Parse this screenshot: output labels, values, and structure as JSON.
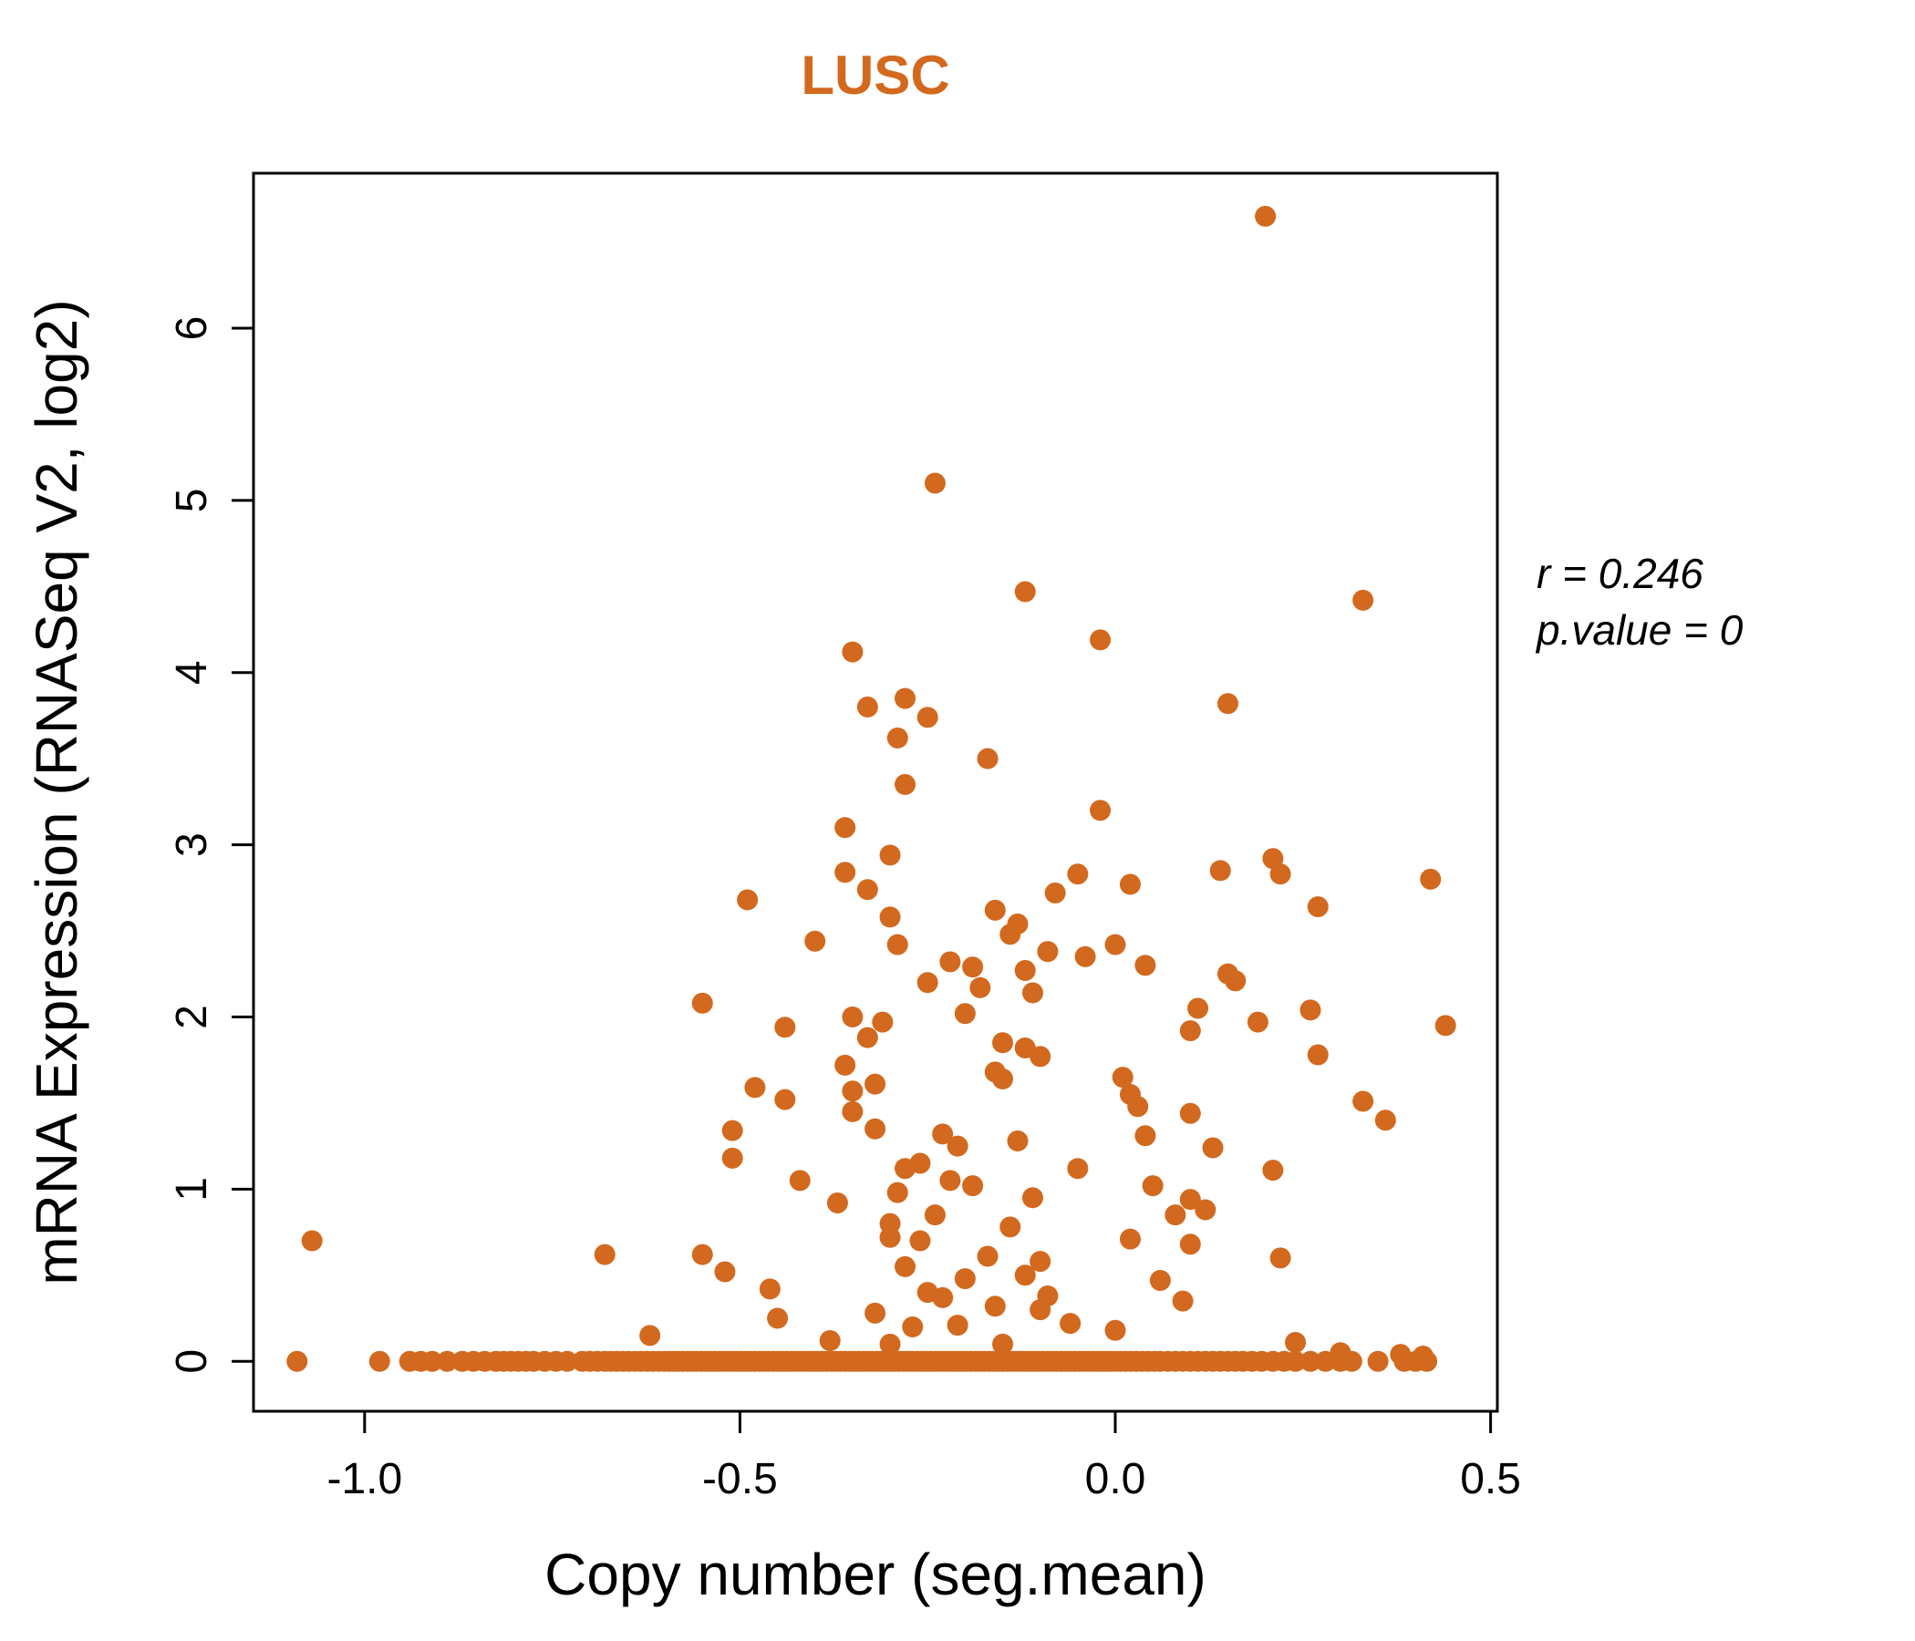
{
  "chart_data": {
    "type": "scatter",
    "title": "LUSC",
    "title_color": "#D2691E",
    "point_color": "#D2691E",
    "xlabel": "Copy number (seg.mean)",
    "ylabel": "mRNA Expression (RNASeq V2, log2)",
    "xlim": [
      -1.148,
      0.509
    ],
    "ylim": [
      -0.29,
      6.9
    ],
    "x_ticks": [
      -1.0,
      -0.5,
      0.0,
      0.5
    ],
    "x_tick_labels": [
      "-1.0",
      "-0.5",
      "0.0",
      "0.5"
    ],
    "y_ticks": [
      0,
      1,
      2,
      3,
      4,
      5,
      6
    ],
    "y_tick_labels": [
      "0",
      "1",
      "2",
      "3",
      "4",
      "5",
      "6"
    ],
    "grid": false,
    "legend": "none",
    "annotation": {
      "line1": "r = 0.246",
      "line2": "p.value = 0"
    },
    "points": [
      [
        0.2,
        6.65
      ],
      [
        -0.24,
        5.1
      ],
      [
        -0.12,
        4.47
      ],
      [
        0.33,
        4.42
      ],
      [
        -0.02,
        4.19
      ],
      [
        -0.35,
        4.12
      ],
      [
        -0.28,
        3.85
      ],
      [
        -0.33,
        3.8
      ],
      [
        0.15,
        3.82
      ],
      [
        -0.25,
        3.74
      ],
      [
        -0.29,
        3.62
      ],
      [
        -0.17,
        3.5
      ],
      [
        -0.28,
        3.35
      ],
      [
        -0.02,
        3.2
      ],
      [
        -0.36,
        3.1
      ],
      [
        -0.3,
        2.94
      ],
      [
        0.21,
        2.92
      ],
      [
        0.14,
        2.85
      ],
      [
        -0.36,
        2.84
      ],
      [
        -0.05,
        2.83
      ],
      [
        0.22,
        2.83
      ],
      [
        0.42,
        2.8
      ],
      [
        0.02,
        2.77
      ],
      [
        -0.33,
        2.74
      ],
      [
        -0.08,
        2.72
      ],
      [
        -0.49,
        2.68
      ],
      [
        0.27,
        2.64
      ],
      [
        -0.16,
        2.62
      ],
      [
        -0.3,
        2.58
      ],
      [
        -0.13,
        2.54
      ],
      [
        -0.14,
        2.48
      ],
      [
        -0.4,
        2.44
      ],
      [
        -0.29,
        2.42
      ],
      [
        0.0,
        2.42
      ],
      [
        -0.09,
        2.38
      ],
      [
        -0.04,
        2.35
      ],
      [
        -0.22,
        2.32
      ],
      [
        0.04,
        2.3
      ],
      [
        -0.19,
        2.29
      ],
      [
        -0.12,
        2.27
      ],
      [
        0.15,
        2.25
      ],
      [
        0.16,
        2.21
      ],
      [
        -0.25,
        2.2
      ],
      [
        -0.18,
        2.17
      ],
      [
        -0.11,
        2.14
      ],
      [
        -0.55,
        2.08
      ],
      [
        0.11,
        2.05
      ],
      [
        0.26,
        2.04
      ],
      [
        -0.2,
        2.02
      ],
      [
        -0.35,
        2.0
      ],
      [
        -0.31,
        1.97
      ],
      [
        0.44,
        1.95
      ],
      [
        0.19,
        1.97
      ],
      [
        -0.44,
        1.94
      ],
      [
        0.1,
        1.92
      ],
      [
        -0.33,
        1.88
      ],
      [
        -0.15,
        1.85
      ],
      [
        -0.12,
        1.82
      ],
      [
        0.27,
        1.78
      ],
      [
        -0.1,
        1.77
      ],
      [
        -0.36,
        1.72
      ],
      [
        -0.16,
        1.68
      ],
      [
        0.01,
        1.65
      ],
      [
        -0.15,
        1.64
      ],
      [
        -0.32,
        1.61
      ],
      [
        -0.48,
        1.59
      ],
      [
        -0.35,
        1.57
      ],
      [
        0.02,
        1.55
      ],
      [
        -0.44,
        1.52
      ],
      [
        0.33,
        1.51
      ],
      [
        0.03,
        1.48
      ],
      [
        -0.35,
        1.45
      ],
      [
        0.1,
        1.44
      ],
      [
        0.36,
        1.4
      ],
      [
        -0.32,
        1.35
      ],
      [
        -0.51,
        1.34
      ],
      [
        -0.23,
        1.32
      ],
      [
        0.04,
        1.31
      ],
      [
        -0.13,
        1.28
      ],
      [
        -0.21,
        1.25
      ],
      [
        0.13,
        1.24
      ],
      [
        -0.51,
        1.18
      ],
      [
        -0.26,
        1.15
      ],
      [
        -0.28,
        1.12
      ],
      [
        -0.05,
        1.12
      ],
      [
        0.21,
        1.11
      ],
      [
        -0.42,
        1.05
      ],
      [
        -0.22,
        1.05
      ],
      [
        -0.19,
        1.02
      ],
      [
        0.05,
        1.02
      ],
      [
        -0.29,
        0.98
      ],
      [
        -0.11,
        0.95
      ],
      [
        0.1,
        0.94
      ],
      [
        -0.37,
        0.92
      ],
      [
        0.12,
        0.88
      ],
      [
        -0.24,
        0.85
      ],
      [
        0.08,
        0.85
      ],
      [
        -0.3,
        0.8
      ],
      [
        -0.14,
        0.78
      ],
      [
        -1.07,
        0.7
      ],
      [
        -0.3,
        0.72
      ],
      [
        -0.26,
        0.7
      ],
      [
        0.02,
        0.71
      ],
      [
        0.1,
        0.68
      ],
      [
        -0.68,
        0.62
      ],
      [
        -0.55,
        0.62
      ],
      [
        -0.17,
        0.61
      ],
      [
        0.22,
        0.6
      ],
      [
        -0.1,
        0.58
      ],
      [
        -0.28,
        0.55
      ],
      [
        -0.52,
        0.52
      ],
      [
        -0.12,
        0.5
      ],
      [
        -0.2,
        0.48
      ],
      [
        0.06,
        0.47
      ],
      [
        -0.46,
        0.42
      ],
      [
        -0.25,
        0.4
      ],
      [
        -0.09,
        0.38
      ],
      [
        -0.23,
        0.37
      ],
      [
        0.09,
        0.35
      ],
      [
        -0.16,
        0.32
      ],
      [
        -0.1,
        0.3
      ],
      [
        -0.32,
        0.28
      ],
      [
        -0.45,
        0.25
      ],
      [
        -0.06,
        0.22
      ],
      [
        -0.21,
        0.21
      ],
      [
        -0.27,
        0.2
      ],
      [
        0.0,
        0.18
      ],
      [
        -0.62,
        0.15
      ],
      [
        -0.38,
        0.12
      ],
      [
        -0.3,
        0.1
      ],
      [
        -0.15,
        0.1
      ],
      [
        0.24,
        0.11
      ],
      [
        0.3,
        0.05
      ],
      [
        0.38,
        0.04
      ],
      [
        0.41,
        0.03
      ]
    ],
    "baseline_y": 0,
    "baseline_x": [
      -1.09,
      -0.98,
      -0.94,
      -0.925,
      -0.91,
      -0.89,
      -0.87,
      -0.855,
      -0.84,
      -0.825,
      -0.815,
      -0.805,
      -0.795,
      -0.785,
      -0.775,
      -0.76,
      -0.745,
      -0.73,
      -0.71,
      -0.7,
      -0.69,
      -0.68,
      -0.672,
      -0.664,
      -0.656,
      -0.648,
      -0.64,
      -0.632,
      -0.624,
      -0.616,
      -0.608,
      -0.6,
      -0.594,
      -0.588,
      -0.582,
      -0.576,
      -0.57,
      -0.564,
      -0.558,
      -0.552,
      -0.546,
      -0.54,
      -0.534,
      -0.528,
      -0.522,
      -0.516,
      -0.51,
      -0.504,
      -0.498,
      -0.492,
      -0.486,
      -0.48,
      -0.474,
      -0.468,
      -0.462,
      -0.456,
      -0.45,
      -0.444,
      -0.438,
      -0.432,
      -0.426,
      -0.42,
      -0.414,
      -0.408,
      -0.402,
      -0.396,
      -0.39,
      -0.384,
      -0.378,
      -0.372,
      -0.366,
      -0.36,
      -0.354,
      -0.348,
      -0.342,
      -0.336,
      -0.33,
      -0.324,
      -0.318,
      -0.312,
      -0.306,
      -0.3,
      -0.294,
      -0.288,
      -0.282,
      -0.276,
      -0.27,
      -0.264,
      -0.258,
      -0.252,
      -0.246,
      -0.24,
      -0.234,
      -0.228,
      -0.222,
      -0.216,
      -0.21,
      -0.204,
      -0.198,
      -0.192,
      -0.186,
      -0.18,
      -0.174,
      -0.168,
      -0.162,
      -0.156,
      -0.15,
      -0.144,
      -0.138,
      -0.132,
      -0.126,
      -0.12,
      -0.114,
      -0.108,
      -0.102,
      -0.096,
      -0.09,
      -0.084,
      -0.078,
      -0.072,
      -0.066,
      -0.06,
      -0.054,
      -0.048,
      -0.042,
      -0.036,
      -0.03,
      -0.024,
      -0.018,
      -0.012,
      -0.006,
      0.0,
      0.007,
      0.014,
      0.021,
      0.028,
      0.036,
      0.044,
      0.052,
      0.06,
      0.07,
      0.08,
      0.09,
      0.1,
      0.11,
      0.12,
      0.13,
      0.14,
      0.15,
      0.16,
      0.17,
      0.182,
      0.195,
      0.21,
      0.225,
      0.24,
      0.26,
      0.28,
      0.3,
      0.315,
      0.35,
      0.385,
      0.4,
      0.415
    ]
  }
}
